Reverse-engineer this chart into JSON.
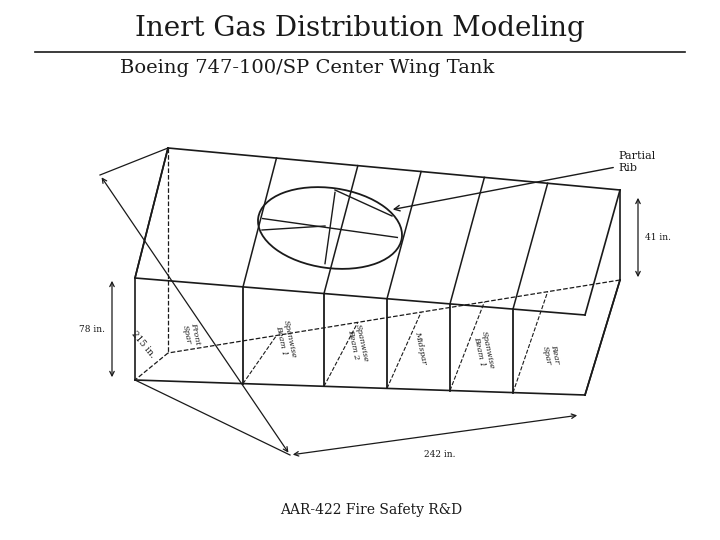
{
  "title": "Inert Gas Distribution Modeling",
  "subtitle": "Boeing 747-100/SP Center Wing Tank",
  "footer": "AAR-422 Fire Safety R&D",
  "bg_color": "#ffffff",
  "title_fontsize": 20,
  "subtitle_fontsize": 14,
  "footer_fontsize": 10,
  "line_color": "#1a1a1a",
  "text_color": "#1a1a1a",
  "dim_78": "78 in.",
  "dim_41": "41 in.",
  "dim_215": "215 in.",
  "dim_242": "242 in.",
  "partial_rib": "Partial\nRib",
  "labels": [
    "Front\nSpar",
    "Spanwise\nBeam 1",
    "Spanwise\nBeam 2",
    "Midspar",
    "Spanwise\nBeam 1",
    "Rear\nSpar"
  ]
}
